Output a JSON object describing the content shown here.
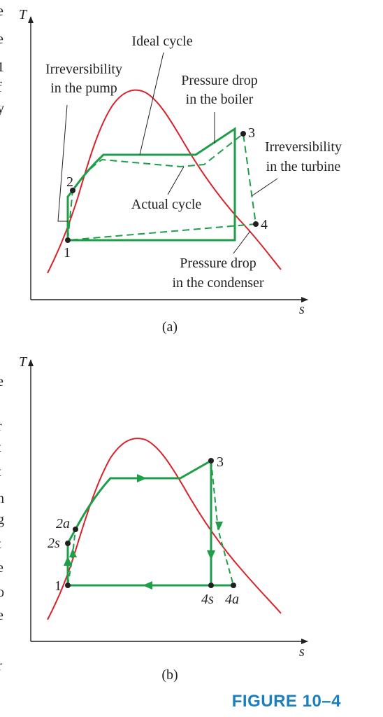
{
  "colors": {
    "dome": "#d9222a",
    "cycle": "#1e9e48",
    "axis": "#231f20",
    "caption_blue": "#1a7fbf",
    "ring": "#1a7fbf"
  },
  "margin_text": [
    "e",
    "e",
    "1",
    "f",
    "y",
    ",",
    "e",
    "r",
    "t",
    "t",
    "n",
    "g",
    "t",
    "e",
    "o",
    "e",
    "r"
  ],
  "panel_a": {
    "axis_y": "T",
    "axis_x": "s",
    "caption": "(a)",
    "annotations": {
      "ideal_cycle": "Ideal cycle",
      "irrev_pump_1": "Irreversibility",
      "irrev_pump_2": "in the pump",
      "p_drop_boiler_1": "Pressure drop",
      "p_drop_boiler_2": "in the boiler",
      "irrev_turbine_1": "Irreversibility",
      "irrev_turbine_2": "in the turbine",
      "actual_cycle": "Actual cycle",
      "p_drop_cond_1": "Pressure drop",
      "p_drop_cond_2": "in the condenser"
    },
    "states": {
      "s1": "1",
      "s2": "2",
      "s3": "3",
      "s4": "4"
    }
  },
  "panel_b": {
    "axis_y": "T",
    "axis_x": "s",
    "caption": "(b)",
    "states": {
      "s1": "1",
      "s2a": "2a",
      "s2s": "2s",
      "s3": "3",
      "s4s": "4s",
      "s4a": "4a"
    }
  },
  "figure_caption": "FIGURE 10–4"
}
